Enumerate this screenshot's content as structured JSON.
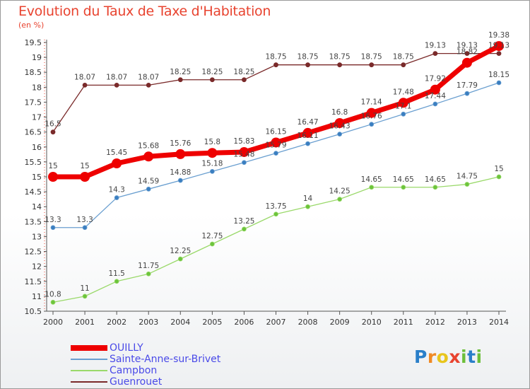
{
  "title": "Evolution du Taux de Taxe d'Habitation",
  "unit_label": "(en %)",
  "logo": {
    "text": "Proxiti",
    "letters": [
      {
        "ch": "P",
        "color": "#2a7fc9"
      },
      {
        "ch": "r",
        "color": "#f08a24"
      },
      {
        "ch": "o",
        "color": "#e8c51c"
      },
      {
        "ch": "x",
        "color": "#e8432f"
      },
      {
        "ch": "i",
        "color": "#6cbf3a"
      },
      {
        "ch": "t",
        "color": "#2a7fc9"
      },
      {
        "ch": "i",
        "color": "#6cbf3a"
      }
    ]
  },
  "chart_data": {
    "type": "line",
    "title": "Evolution du Taux de Taxe d'Habitation",
    "ylabel": "(en %)",
    "xlabel": "",
    "ylim": [
      10.5,
      19.5
    ],
    "yticks": [
      "10.5",
      "11",
      "11.5",
      "12",
      "12.5",
      "13",
      "13.5",
      "14",
      "14.5",
      "15",
      "15.5",
      "16",
      "16.5",
      "17",
      "17.5",
      "18",
      "18.5",
      "19",
      "19.5"
    ],
    "grid": false,
    "legend_position": "bottom-left",
    "x": [
      "2000",
      "2001",
      "2002",
      "2003",
      "2004",
      "2005",
      "2006",
      "2007",
      "2008",
      "2009",
      "2010",
      "2011",
      "2012",
      "2013",
      "2014"
    ],
    "series": [
      {
        "name": "Guenrouet",
        "color": "#7a2a2a",
        "style": "thin",
        "values": [
          16.5,
          18.07,
          18.07,
          18.07,
          18.25,
          18.25,
          18.25,
          18.75,
          18.75,
          18.75,
          18.75,
          18.75,
          19.13,
          19.13,
          19.13
        ],
        "labels": [
          "16.5",
          "18.07",
          "18.07",
          "18.07",
          "18.25",
          "18.25",
          "18.25",
          "18.75",
          "18.75",
          "18.75",
          "18.75",
          "18.75",
          "19.13",
          "19.13",
          "19.13"
        ]
      },
      {
        "name": "Campbon",
        "color": "#9ad96a",
        "marker": "#6cc43c",
        "style": "thin",
        "values": [
          10.8,
          11,
          11.5,
          11.75,
          12.25,
          12.75,
          13.25,
          13.75,
          14,
          14.25,
          14.65,
          14.65,
          14.65,
          14.75,
          15
        ],
        "labels": [
          "10.8",
          "11",
          "11.5",
          "11.75",
          "12.25",
          "12.75",
          "13.25",
          "13.75",
          "14",
          "14.25",
          "14.65",
          "14.65",
          "14.65",
          "14.75",
          "15"
        ]
      },
      {
        "name": "Sainte-Anne-sur-Brivet",
        "color": "#6a9fd0",
        "marker": "#3a7ec0",
        "style": "thin",
        "values": [
          13.3,
          13.3,
          14.3,
          14.59,
          14.88,
          15.18,
          15.48,
          15.79,
          16.11,
          16.43,
          16.76,
          17.1,
          17.44,
          17.79,
          18.15
        ],
        "labels": [
          "13.3",
          "13.3",
          "14.3",
          "14.59",
          "14.88",
          "15.18",
          "15.48",
          "15.79",
          "16.11",
          "16.43",
          "16.76",
          "17.1",
          "17.44",
          "17.79",
          "18.15"
        ]
      },
      {
        "name": "OUILLY",
        "color": "#ee0000",
        "marker": "#ee0000",
        "style": "thick",
        "values": [
          15,
          15,
          15.45,
          15.68,
          15.76,
          15.8,
          15.83,
          16.15,
          16.47,
          16.8,
          17.14,
          17.48,
          17.92,
          18.82,
          19.38
        ],
        "labels": [
          "15",
          "15",
          "15.45",
          "15.68",
          "15.76",
          "15.8",
          "15.83",
          "16.15",
          "16.47",
          "16.8",
          "17.14",
          "17.48",
          "17.92",
          "18.82",
          "19.38"
        ]
      }
    ]
  }
}
